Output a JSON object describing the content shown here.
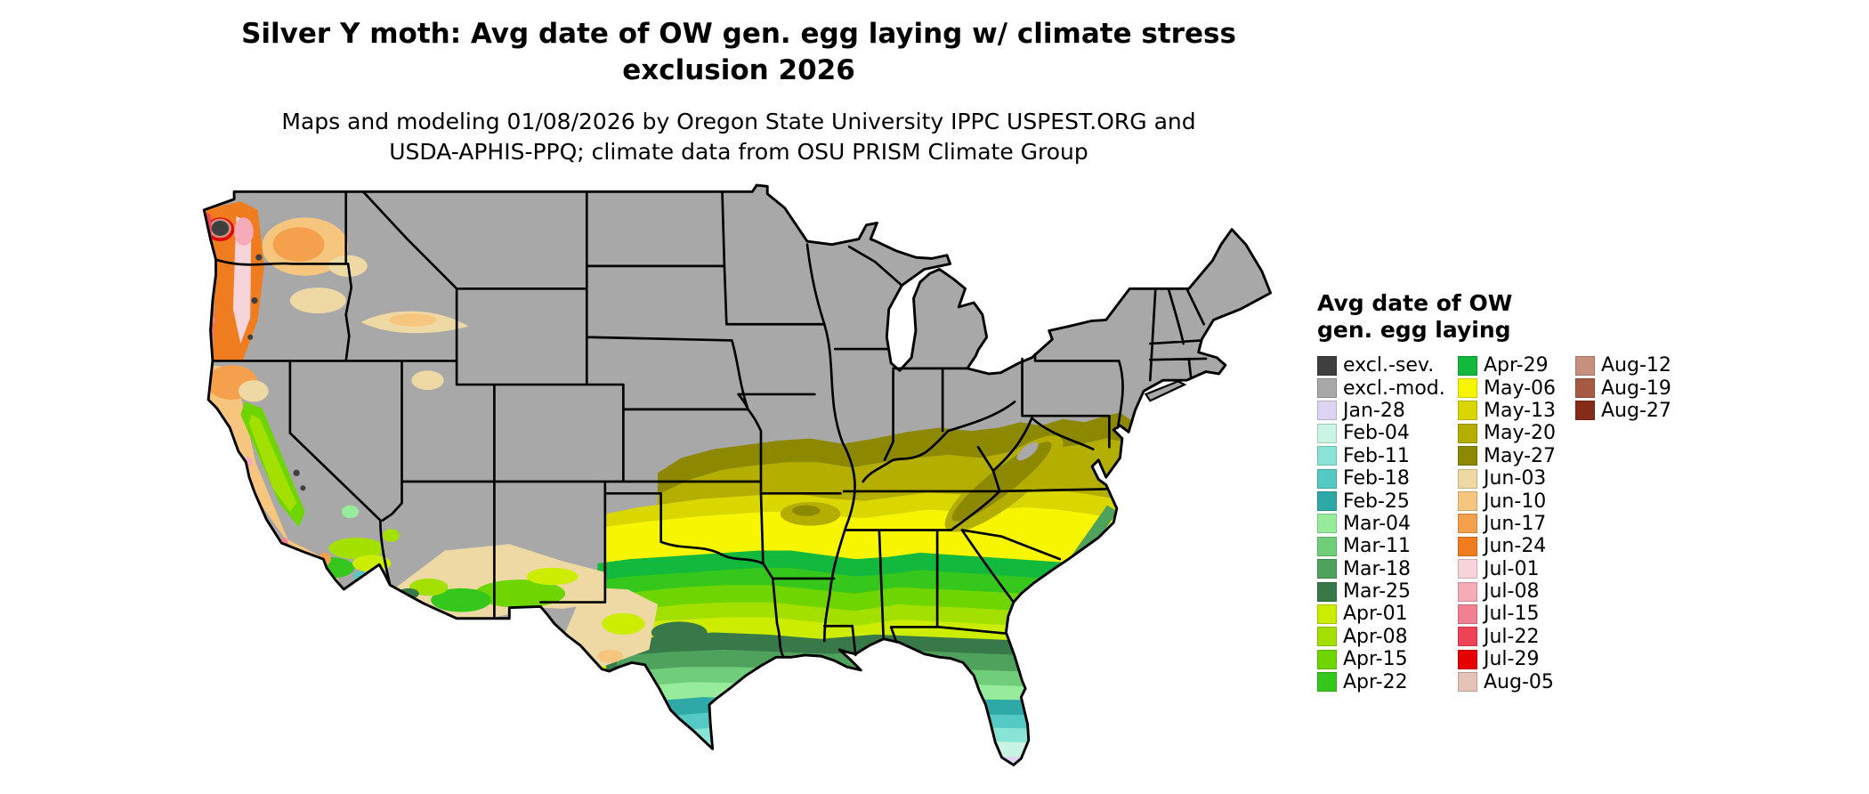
{
  "header": {
    "title_line1": "Silver Y moth: Avg date of OW gen. egg laying w/ climate stress",
    "title_line2": "exclusion 2026",
    "subtitle_line1": "Maps and modeling 01/08/2026 by Oregon State University IPPC USPEST.ORG and",
    "subtitle_line2": "USDA-APHIS-PPQ; climate data from OSU PRISM Climate Group"
  },
  "legend": {
    "title_line1": "Avg date of OW",
    "title_line2": "gen. egg laying",
    "columns": [
      [
        {
          "label": "excl.-sev.",
          "color": "#3f3f3f"
        },
        {
          "label": "excl.-mod.",
          "color": "#a8a8a8"
        },
        {
          "label": "Jan-28",
          "color": "#ded4f2"
        },
        {
          "label": "Feb-04",
          "color": "#c9f4e4"
        },
        {
          "label": "Feb-11",
          "color": "#8ae4d6"
        },
        {
          "label": "Feb-18",
          "color": "#55c9c4"
        },
        {
          "label": "Feb-25",
          "color": "#2fa8a8"
        },
        {
          "label": "Mar-04",
          "color": "#97ec9b"
        },
        {
          "label": "Mar-11",
          "color": "#70cd79"
        },
        {
          "label": "Mar-18",
          "color": "#4fa25c"
        },
        {
          "label": "Mar-25",
          "color": "#38794a"
        },
        {
          "label": "Apr-01",
          "color": "#ccec00"
        },
        {
          "label": "Apr-08",
          "color": "#a3e000"
        },
        {
          "label": "Apr-15",
          "color": "#6ed500"
        },
        {
          "label": "Apr-22",
          "color": "#35c71c"
        }
      ],
      [
        {
          "label": "Apr-29",
          "color": "#12b93c"
        },
        {
          "label": "May-06",
          "color": "#f8f500"
        },
        {
          "label": "May-13",
          "color": "#d9d600"
        },
        {
          "label": "May-20",
          "color": "#b4ae00"
        },
        {
          "label": "May-27",
          "color": "#8c8800"
        },
        {
          "label": "Jun-03",
          "color": "#eed9a4"
        },
        {
          "label": "Jun-10",
          "color": "#f7c67e"
        },
        {
          "label": "Jun-17",
          "color": "#f5a04c"
        },
        {
          "label": "Jun-24",
          "color": "#ef7d20"
        },
        {
          "label": "Jul-01",
          "color": "#f7d4da"
        },
        {
          "label": "Jul-08",
          "color": "#f5abb8"
        },
        {
          "label": "Jul-15",
          "color": "#f28093"
        },
        {
          "label": "Jul-22",
          "color": "#ee4257"
        },
        {
          "label": "Jul-29",
          "color": "#e60000"
        },
        {
          "label": "Aug-05",
          "color": "#e5c2b6"
        }
      ],
      [
        {
          "label": "Aug-12",
          "color": "#c78f7e"
        },
        {
          "label": "Aug-19",
          "color": "#a65a44"
        },
        {
          "label": "Aug-27",
          "color": "#842c17"
        }
      ]
    ]
  },
  "map": {
    "background_color": "#ffffff",
    "excluded_land_color": "#a8a8a8",
    "state_border_color": "#000000"
  }
}
